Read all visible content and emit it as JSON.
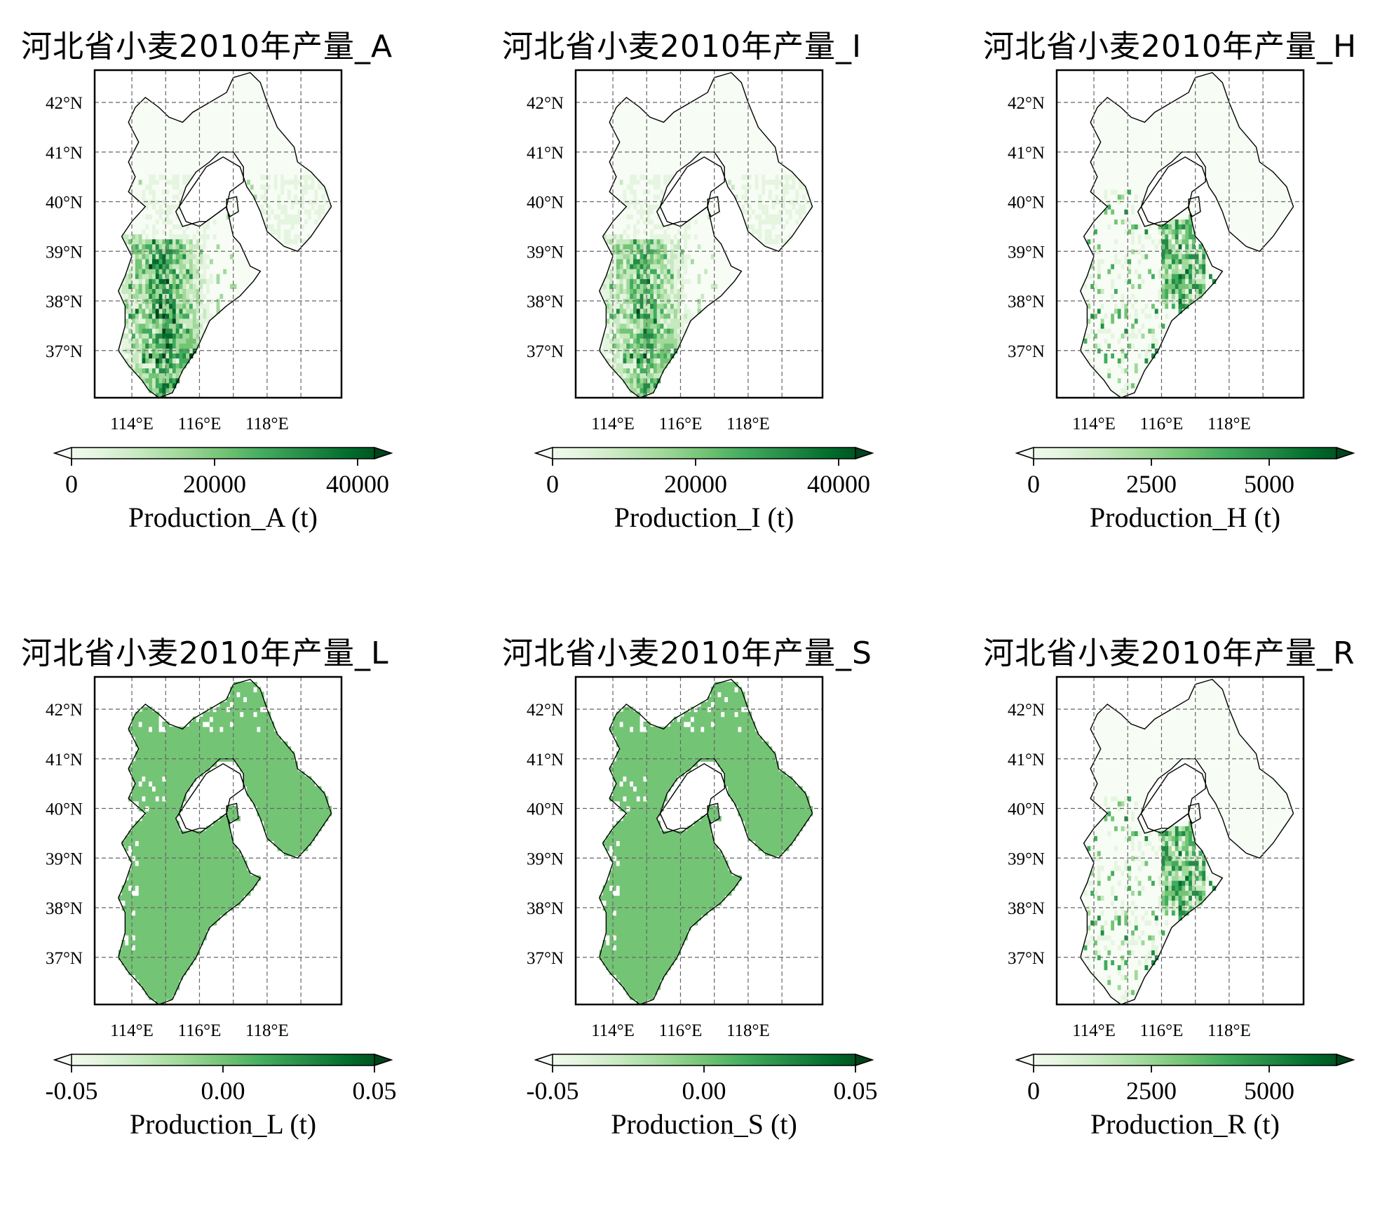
{
  "panels": [
    {
      "title": "河北省小麦2010年产量_A",
      "cbar_label": "Production_A (t)",
      "ticks": [
        "0",
        "20000",
        "40000"
      ],
      "pattern": "wheat"
    },
    {
      "title": "河北省小麦2010年产量_I",
      "cbar_label": "Production_I (t)",
      "ticks": [
        "0",
        "20000",
        "40000"
      ],
      "pattern": "wheat_i"
    },
    {
      "title": "河北省小麦2010年产量_H",
      "cbar_label": "Production_H (t)",
      "ticks": [
        "0",
        "2500",
        "5000"
      ],
      "pattern": "rain"
    },
    {
      "title": "河北省小麦2010年产量_L",
      "cbar_label": "Production_L (t)",
      "ticks": [
        "-0.05",
        "0.00",
        "0.05"
      ],
      "pattern": "flat"
    },
    {
      "title": "河北省小麦2010年产量_S",
      "cbar_label": "Production_S (t)",
      "ticks": [
        "-0.05",
        "0.00",
        "0.05"
      ],
      "pattern": "flat"
    },
    {
      "title": "河北省小麦2010年产量_R",
      "cbar_label": "Production_R (t)",
      "ticks": [
        "0",
        "2500",
        "5000"
      ],
      "pattern": "rain"
    }
  ],
  "lat_labels": [
    "42°N",
    "41°N",
    "40°N",
    "39°N",
    "38°N",
    "37°N"
  ],
  "lon_labels": [
    "114°E",
    "116°E",
    "118°E"
  ],
  "colormap": [
    "#f7fcf5",
    "#e5f5e0",
    "#c7e9c0",
    "#a1d99b",
    "#74c476",
    "#41ab5d",
    "#238b45",
    "#006d2c",
    "#00441b"
  ],
  "flat_fill": "#74c476"
}
